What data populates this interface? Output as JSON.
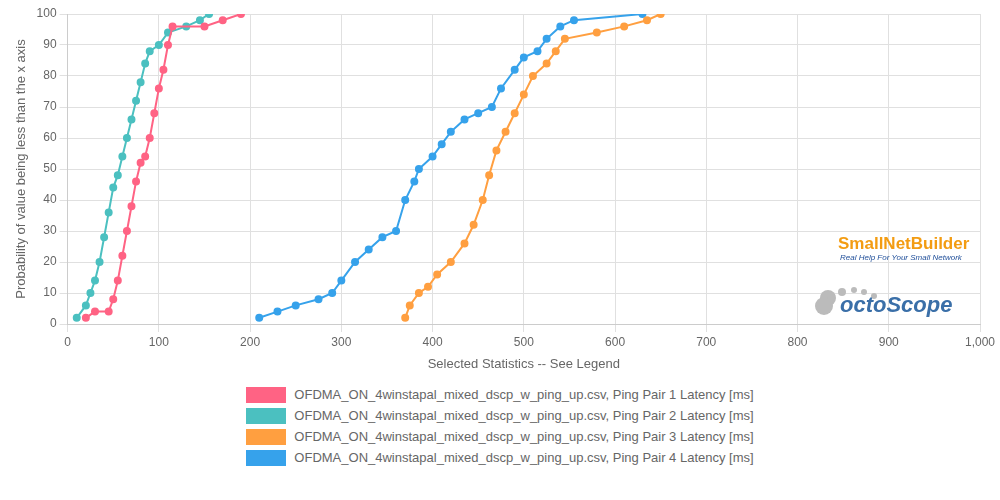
{
  "chart_data": {
    "type": "line",
    "x_label": "Selected Statistics -- See Legend",
    "y_label": "Probability of value being less than the x axis",
    "xlim": [
      0,
      1000
    ],
    "xticks": [
      0,
      100,
      200,
      300,
      400,
      500,
      600,
      700,
      800,
      900,
      1000
    ],
    "ylim": [
      0,
      100
    ],
    "yticks": [
      0,
      10,
      20,
      30,
      40,
      50,
      60,
      70,
      80,
      90,
      100
    ],
    "grid": true,
    "legend": "bottom",
    "marker": "circle",
    "annotations": [
      "SmallNetBuilder",
      "Real Help For Your Small Network",
      "octoScope"
    ],
    "series": [
      {
        "name": "OFDMA_ON_4winstapal_mixed_dscp_w_ping_up.csv, Ping Pair 1 Latency [ms]",
        "color": "#ff6384",
        "x": [
          20,
          30,
          45,
          50,
          55,
          60,
          65,
          70,
          75,
          80,
          85,
          90,
          95,
          100,
          105,
          110,
          115,
          150,
          170,
          190
        ],
        "values": [
          2,
          4,
          4,
          8,
          14,
          22,
          30,
          38,
          46,
          52,
          54,
          60,
          68,
          76,
          82,
          90,
          96,
          96,
          98,
          100
        ]
      },
      {
        "name": "OFDMA_ON_4winstapal_mixed_dscp_w_ping_up.csv, Ping Pair 2 Latency [ms]",
        "color": "#4bc0c0",
        "x": [
          10,
          20,
          25,
          30,
          35,
          40,
          45,
          50,
          55,
          60,
          65,
          70,
          75,
          80,
          85,
          90,
          100,
          110,
          130,
          145,
          155
        ],
        "values": [
          2,
          6,
          10,
          14,
          20,
          28,
          36,
          44,
          48,
          54,
          60,
          66,
          72,
          78,
          84,
          88,
          90,
          94,
          96,
          98,
          100
        ]
      },
      {
        "name": "OFDMA_ON_4winstapal_mixed_dscp_w_ping_up.csv, Ping Pair 3 Latency [ms]",
        "color": "#ff9f40",
        "x": [
          370,
          375,
          385,
          395,
          405,
          420,
          435,
          445,
          455,
          462,
          470,
          480,
          490,
          500,
          510,
          525,
          535,
          545,
          580,
          610,
          635,
          650
        ],
        "values": [
          2,
          6,
          10,
          12,
          16,
          20,
          26,
          32,
          40,
          48,
          56,
          62,
          68,
          74,
          80,
          84,
          88,
          92,
          94,
          96,
          98,
          100
        ]
      },
      {
        "name": "OFDMA_ON_4winstapal_mixed_dscp_w_ping_up.csv, Ping Pair 4 Latency [ms]",
        "color": "#36a2eb",
        "x": [
          210,
          230,
          250,
          275,
          290,
          300,
          315,
          330,
          345,
          360,
          370,
          380,
          385,
          400,
          410,
          420,
          435,
          450,
          465,
          475,
          490,
          500,
          515,
          525,
          540,
          555,
          630
        ],
        "values": [
          2,
          4,
          6,
          8,
          10,
          14,
          20,
          24,
          28,
          30,
          40,
          46,
          50,
          54,
          58,
          62,
          66,
          68,
          70,
          76,
          82,
          86,
          88,
          92,
          96,
          98,
          100
        ]
      }
    ]
  }
}
